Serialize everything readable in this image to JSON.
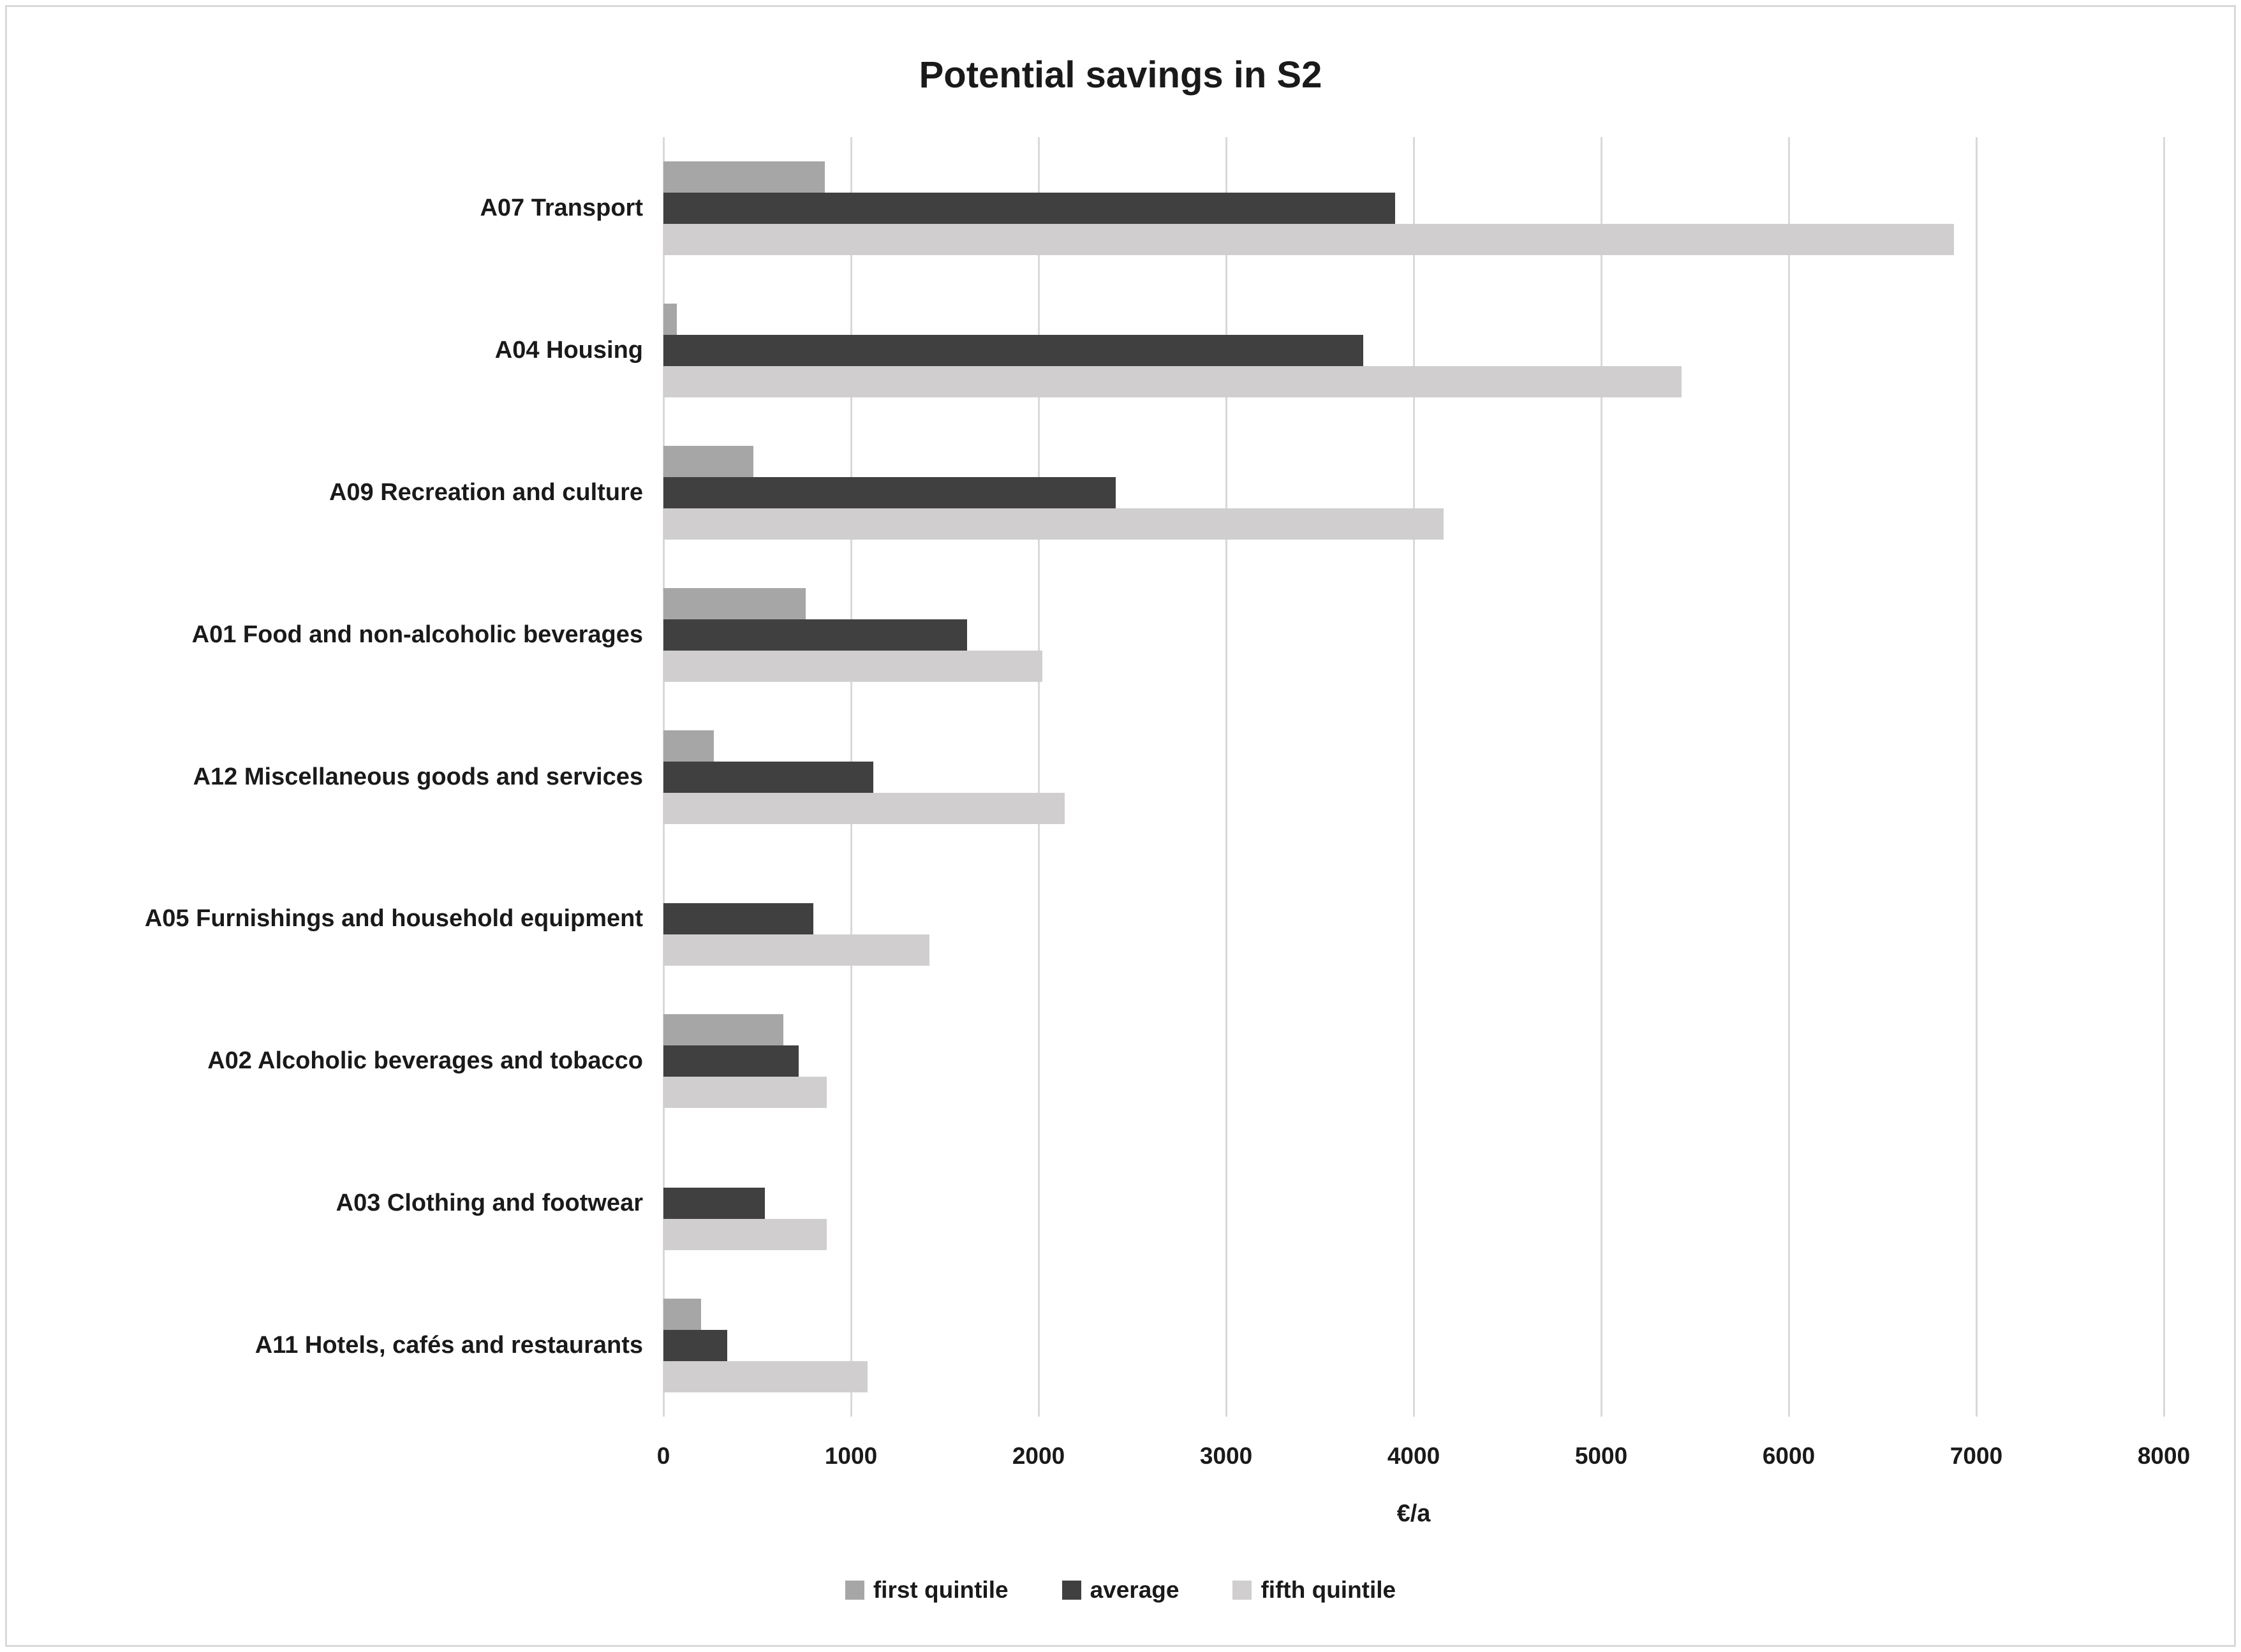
{
  "chart_data": {
    "type": "bar",
    "orientation": "horizontal",
    "title": "Potential savings in S2",
    "xlabel": "€/a",
    "xlim": [
      0,
      8000
    ],
    "x_ticks": [
      0,
      1000,
      2000,
      3000,
      4000,
      5000,
      6000,
      7000,
      8000
    ],
    "grid": true,
    "grid_color": "#d9d9d9",
    "text_color": "#1a1a1a",
    "legend_position": "bottom",
    "categories": [
      "A07 Transport",
      "A04 Housing",
      "A09 Recreation and culture",
      "A01 Food and non-alcoholic beverages",
      "A12 Miscellaneous goods and services",
      "A05 Furnishings and household equipment",
      "A02 Alcoholic beverages and tobacco",
      "A03 Clothing and footwear",
      "A11 Hotels, cafés and restaurants"
    ],
    "series": [
      {
        "name": "first quintile",
        "color": "#a6a6a6",
        "values": [
          860,
          70,
          480,
          760,
          270,
          0,
          640,
          0,
          200
        ]
      },
      {
        "name": "average",
        "color": "#404040",
        "values": [
          3900,
          3730,
          2410,
          1620,
          1120,
          800,
          720,
          540,
          340
        ]
      },
      {
        "name": "fifth quintile",
        "color": "#d0cece",
        "values": [
          6880,
          5430,
          4160,
          2020,
          2140,
          1420,
          870,
          870,
          1090
        ]
      }
    ]
  }
}
